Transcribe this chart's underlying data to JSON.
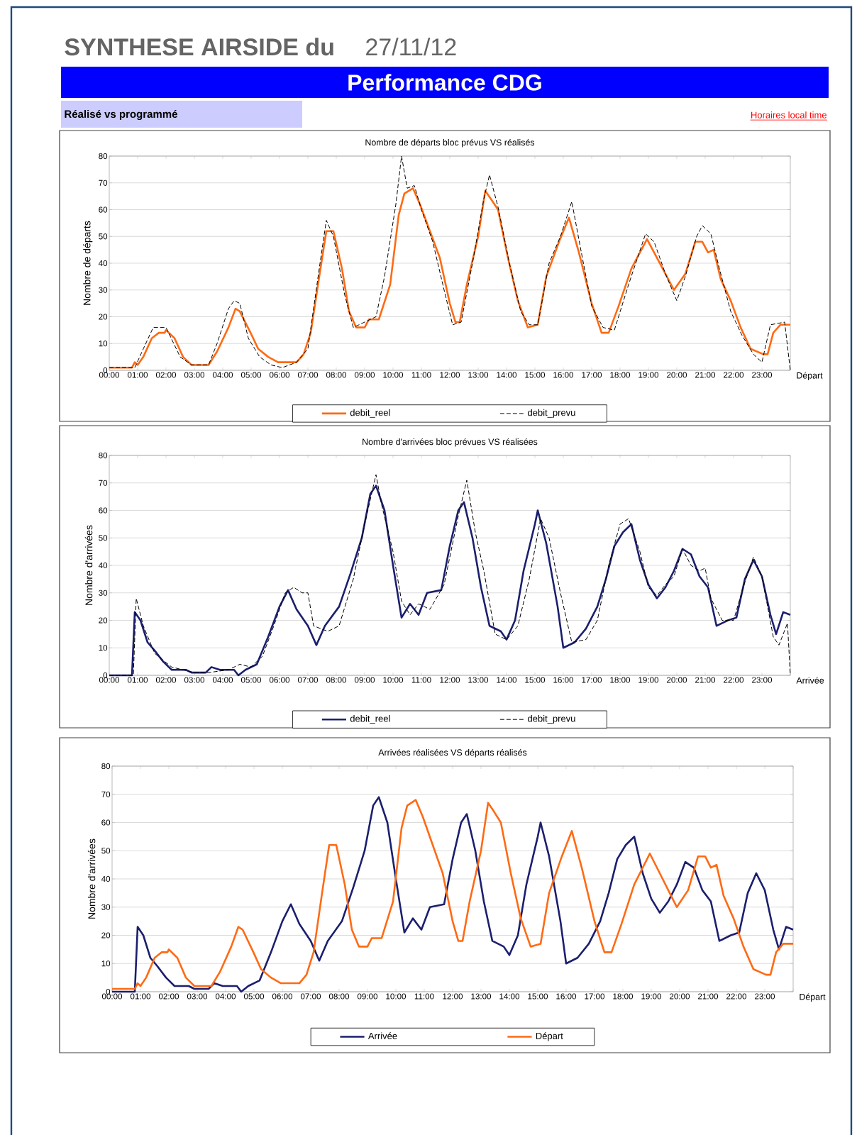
{
  "chart_data": [
    {
      "type": "other",
      "title": "SYNTHESE AIRSIDE du",
      "subtitle": "Performance CDG",
      "annotations": [
        "27/11/12",
        "Réalisé vs programmé",
        "Horaires local time"
      ]
    },
    {
      "type": "line",
      "title": "Nombre de départs bloc prévus VS réalisés",
      "xlabel": "Départ",
      "ylabel": "Nombre de départs",
      "xlim": [
        0,
        24
      ],
      "ylim": [
        0,
        80
      ],
      "yticks": [
        0,
        10,
        20,
        30,
        40,
        50,
        60,
        70,
        80
      ],
      "grid": "y",
      "legend": "bottom",
      "xticks": [
        {
          "value": 0,
          "label": "00:00"
        },
        {
          "value": 1,
          "label": "01:00"
        },
        {
          "value": 2,
          "label": "02:00"
        },
        {
          "value": 3,
          "label": "03:00"
        },
        {
          "value": 4,
          "label": "04:00"
        },
        {
          "value": 5,
          "label": "05:00"
        },
        {
          "value": 6,
          "label": "06:00"
        },
        {
          "value": 7,
          "label": "07:00"
        },
        {
          "value": 8,
          "label": "08:00"
        },
        {
          "value": 9,
          "label": "09:00"
        },
        {
          "value": 10,
          "label": "10:00"
        },
        {
          "value": 11,
          "label": "11:00"
        },
        {
          "value": 12,
          "label": "12:00"
        },
        {
          "value": 13,
          "label": "13:00"
        },
        {
          "value": 14,
          "label": "14:00"
        },
        {
          "value": 15,
          "label": "15:00"
        },
        {
          "value": 16,
          "label": "16:00"
        },
        {
          "value": 17,
          "label": "17:00"
        },
        {
          "value": 18,
          "label": "18:00"
        },
        {
          "value": 19,
          "label": "19:00"
        },
        {
          "value": 20,
          "label": "20:00"
        },
        {
          "value": 21,
          "label": "21:00"
        },
        {
          "value": 22,
          "label": "22:00"
        },
        {
          "value": 23,
          "label": "23:00"
        },
        {
          "value": 24,
          "label": null
        }
      ],
      "series": [
        {
          "name": "debit_reel",
          "color": "#ff6a13",
          "line_style": "solid",
          "x": [
            0,
            0.5,
            0.8,
            0.9,
            1.0,
            1.2,
            1.5,
            1.75,
            1.95,
            2.0,
            2.3,
            2.6,
            2.9,
            3.5,
            3.8,
            4.2,
            4.45,
            4.6,
            4.98,
            5.25,
            5.6,
            5.95,
            6.6,
            6.85,
            7.1,
            7.4,
            7.65,
            7.9,
            8.2,
            8.45,
            8.7,
            9.0,
            9.15,
            9.5,
            9.9,
            10.2,
            10.4,
            10.7,
            10.95,
            11.3,
            11.65,
            12.0,
            12.2,
            12.35,
            12.6,
            13.0,
            13.25,
            13.45,
            13.7,
            14.05,
            14.4,
            14.75,
            15.1,
            15.4,
            15.85,
            16.2,
            16.55,
            17.0,
            17.35,
            17.6,
            17.95,
            18.4,
            18.95,
            19.3,
            19.65,
            19.9,
            20.3,
            20.65,
            20.9,
            21.1,
            21.3,
            21.55,
            21.9,
            22.25,
            22.6,
            23.05,
            23.2,
            23.4,
            23.65,
            23.85,
            24
          ],
          "values": [
            1,
            1,
            1,
            3,
            2,
            5,
            12,
            14,
            14,
            15,
            12,
            5,
            2,
            2,
            7,
            16,
            23,
            22,
            14,
            8,
            5,
            3,
            3,
            6,
            14,
            35,
            52,
            52,
            38,
            22,
            16,
            16,
            19,
            19,
            32,
            58,
            66,
            68,
            62,
            52,
            42,
            25,
            18,
            18,
            32,
            50,
            67,
            64,
            60,
            42,
            26,
            16,
            17,
            35,
            48,
            57,
            44,
            25,
            14,
            14,
            24,
            38,
            49,
            42,
            35,
            30,
            36,
            48,
            48,
            44,
            45,
            34,
            26,
            16,
            8,
            6,
            6,
            14,
            17,
            17,
            17
          ]
        },
        {
          "name": "debit_prevu",
          "color": "#000000",
          "line_style": "dashed",
          "x": [
            0,
            0.9,
            1.2,
            1.55,
            2.0,
            2.5,
            2.9,
            3.5,
            3.8,
            4.2,
            4.4,
            4.6,
            4.9,
            5.3,
            5.7,
            6.1,
            6.6,
            7.0,
            7.4,
            7.65,
            7.9,
            8.3,
            8.6,
            9.0,
            9.4,
            9.7,
            10.1,
            10.3,
            10.5,
            10.75,
            11.0,
            11.4,
            11.8,
            12.1,
            12.4,
            12.8,
            13.2,
            13.4,
            13.7,
            14.1,
            14.5,
            14.8,
            15.1,
            15.5,
            15.9,
            16.3,
            16.6,
            17.0,
            17.4,
            17.8,
            18.3,
            18.9,
            19.2,
            19.6,
            20.0,
            20.3,
            20.7,
            20.9,
            21.2,
            21.5,
            21.9,
            22.3,
            22.7,
            23.0,
            23.3,
            23.8,
            24
          ],
          "values": [
            1,
            1,
            8,
            16,
            16,
            5,
            2,
            2,
            10,
            23,
            26,
            25,
            12,
            5,
            2,
            1,
            3,
            8,
            38,
            56,
            50,
            28,
            16,
            18,
            20,
            35,
            62,
            80,
            68,
            69,
            60,
            48,
            30,
            17,
            18,
            40,
            64,
            73,
            61,
            40,
            22,
            17,
            17,
            40,
            50,
            63,
            46,
            24,
            16,
            15,
            32,
            51,
            48,
            36,
            26,
            35,
            50,
            54,
            51,
            38,
            22,
            13,
            6,
            3,
            17,
            18,
            0
          ]
        }
      ]
    },
    {
      "type": "line",
      "title": "Nombre d'arrivées bloc prévues VS réalisées",
      "xlabel": "Arrivée",
      "ylabel": "Nombre d'arrivées",
      "xlim": [
        0,
        24
      ],
      "ylim": [
        0,
        80
      ],
      "yticks": [
        0,
        10,
        20,
        30,
        40,
        50,
        60,
        70,
        80
      ],
      "grid": "y",
      "legend": "bottom",
      "xticks": [
        {
          "value": 0,
          "label": "00:00"
        },
        {
          "value": 1,
          "label": "01:00"
        },
        {
          "value": 2,
          "label": "02:00"
        },
        {
          "value": 3,
          "label": "03:00"
        },
        {
          "value": 4,
          "label": "04:00"
        },
        {
          "value": 5,
          "label": "05:00"
        },
        {
          "value": 6,
          "label": "06:00"
        },
        {
          "value": 7,
          "label": "07:00"
        },
        {
          "value": 8,
          "label": "08:00"
        },
        {
          "value": 9,
          "label": "09:00"
        },
        {
          "value": 10,
          "label": "10:00"
        },
        {
          "value": 11,
          "label": "11:00"
        },
        {
          "value": 12,
          "label": "12:00"
        },
        {
          "value": 13,
          "label": "13:00"
        },
        {
          "value": 14,
          "label": "14:00"
        },
        {
          "value": 15,
          "label": "15:00"
        },
        {
          "value": 16,
          "label": "16:00"
        },
        {
          "value": 17,
          "label": "17:00"
        },
        {
          "value": 18,
          "label": "18:00"
        },
        {
          "value": 19,
          "label": "19:00"
        },
        {
          "value": 20,
          "label": "20:00"
        },
        {
          "value": 21,
          "label": "21:00"
        },
        {
          "value": 22,
          "label": "22:00"
        },
        {
          "value": 23,
          "label": "23:00"
        },
        {
          "value": 24,
          "label": null
        }
      ],
      "series": [
        {
          "name": "debit_reel",
          "color": "#1b1f6e",
          "line_style": "solid",
          "x": [
            0,
            0.8,
            0.9,
            1.1,
            1.35,
            1.6,
            1.9,
            2.2,
            2.7,
            2.9,
            3.4,
            3.6,
            3.9,
            4.4,
            4.55,
            4.8,
            5.2,
            5.6,
            6.0,
            6.3,
            6.6,
            7.0,
            7.3,
            7.6,
            8.1,
            8.5,
            8.9,
            9.2,
            9.4,
            9.7,
            10.0,
            10.3,
            10.6,
            10.9,
            11.2,
            11.7,
            12.0,
            12.3,
            12.5,
            12.8,
            13.1,
            13.4,
            13.8,
            14.0,
            14.3,
            14.6,
            15.0,
            15.1,
            15.4,
            15.8,
            16.0,
            16.4,
            16.8,
            17.2,
            17.5,
            17.8,
            18.1,
            18.4,
            18.7,
            19.0,
            19.3,
            19.6,
            19.9,
            20.2,
            20.5,
            20.8,
            21.1,
            21.4,
            21.8,
            22.1,
            22.4,
            22.7,
            23.0,
            23.3,
            23.5,
            23.75,
            24
          ],
          "values": [
            0,
            0,
            23,
            20,
            12,
            9,
            5,
            2,
            2,
            1,
            1,
            3,
            2,
            2,
            0,
            2,
            4,
            14,
            25,
            31,
            24,
            18,
            11,
            18,
            25,
            37,
            50,
            66,
            69,
            60,
            40,
            21,
            26,
            22,
            30,
            31,
            47,
            60,
            63,
            50,
            32,
            18,
            16,
            13,
            20,
            38,
            55,
            60,
            48,
            25,
            10,
            12,
            17,
            25,
            35,
            47,
            52,
            55,
            42,
            33,
            28,
            32,
            38,
            46,
            44,
            36,
            32,
            18,
            20,
            21,
            35,
            42,
            36,
            22,
            15,
            23,
            22
          ]
        },
        {
          "name": "debit_prevu",
          "color": "#000000",
          "line_style": "dashed",
          "x": [
            0,
            0.85,
            0.95,
            1.2,
            1.6,
            2.2,
            3.0,
            3.5,
            4.2,
            4.6,
            5.0,
            5.4,
            5.8,
            6.2,
            6.5,
            6.8,
            7.0,
            7.2,
            7.7,
            8.1,
            8.6,
            9.0,
            9.4,
            9.6,
            10.0,
            10.3,
            10.6,
            10.9,
            11.3,
            11.8,
            12.3,
            12.6,
            12.9,
            13.2,
            13.6,
            14.0,
            14.4,
            14.8,
            15.2,
            15.5,
            15.9,
            16.3,
            16.8,
            17.2,
            17.6,
            18.0,
            18.3,
            18.7,
            19.0,
            19.3,
            19.6,
            19.9,
            20.2,
            20.5,
            20.8,
            21.0,
            21.2,
            21.6,
            22.0,
            22.4,
            22.7,
            23.0,
            23.4,
            23.6,
            23.9,
            24
          ],
          "values": [
            0,
            0,
            28,
            18,
            8,
            3,
            1,
            1,
            2,
            4,
            3,
            7,
            18,
            30,
            32,
            30,
            30,
            18,
            16,
            18,
            35,
            55,
            73,
            62,
            45,
            27,
            22,
            26,
            24,
            33,
            58,
            71,
            52,
            38,
            15,
            13,
            18,
            35,
            57,
            50,
            30,
            12,
            13,
            20,
            40,
            55,
            57,
            45,
            32,
            29,
            33,
            36,
            46,
            40,
            38,
            39,
            28,
            20,
            20,
            34,
            43,
            36,
            14,
            11,
            19,
            0
          ]
        }
      ]
    },
    {
      "type": "line",
      "title": "Arrivées réalisées VS départs réalisés",
      "xlabel": "Départ",
      "ylabel": "Nombre d'arrivées",
      "xlim": [
        0,
        24
      ],
      "ylim": [
        0,
        80
      ],
      "yticks": [
        0,
        10,
        20,
        30,
        40,
        50,
        60,
        70,
        80
      ],
      "grid": "y",
      "legend": "bottom",
      "xticks": [
        {
          "value": 0,
          "label": "00:00"
        },
        {
          "value": 1,
          "label": "01:00"
        },
        {
          "value": 2,
          "label": "02:00"
        },
        {
          "value": 3,
          "label": "03:00"
        },
        {
          "value": 4,
          "label": "04:00"
        },
        {
          "value": 5,
          "label": "05:00"
        },
        {
          "value": 6,
          "label": "06:00"
        },
        {
          "value": 7,
          "label": "07:00"
        },
        {
          "value": 8,
          "label": "08:00"
        },
        {
          "value": 9,
          "label": "09:00"
        },
        {
          "value": 10,
          "label": "10:00"
        },
        {
          "value": 11,
          "label": "11:00"
        },
        {
          "value": 12,
          "label": "12:00"
        },
        {
          "value": 13,
          "label": "13:00"
        },
        {
          "value": 14,
          "label": "14:00"
        },
        {
          "value": 15,
          "label": "15:00"
        },
        {
          "value": 16,
          "label": "16:00"
        },
        {
          "value": 17,
          "label": "17:00"
        },
        {
          "value": 18,
          "label": "18:00"
        },
        {
          "value": 19,
          "label": "19:00"
        },
        {
          "value": 20,
          "label": "20:00"
        },
        {
          "value": 21,
          "label": "21:00"
        },
        {
          "value": 22,
          "label": "22:00"
        },
        {
          "value": 23,
          "label": "23:00"
        },
        {
          "value": 24,
          "label": null
        }
      ],
      "series": [
        {
          "name": "Arrivée",
          "color": "#1b1f6e",
          "line_style": "solid",
          "x": [
            0,
            0.8,
            0.9,
            1.1,
            1.35,
            1.6,
            1.9,
            2.2,
            2.7,
            2.9,
            3.4,
            3.6,
            3.9,
            4.4,
            4.55,
            4.8,
            5.2,
            5.6,
            6.0,
            6.3,
            6.6,
            7.0,
            7.3,
            7.6,
            8.1,
            8.5,
            8.9,
            9.2,
            9.4,
            9.7,
            10.0,
            10.3,
            10.6,
            10.9,
            11.2,
            11.7,
            12.0,
            12.3,
            12.5,
            12.8,
            13.1,
            13.4,
            13.8,
            14.0,
            14.3,
            14.6,
            15.0,
            15.1,
            15.4,
            15.8,
            16.0,
            16.4,
            16.8,
            17.2,
            17.5,
            17.8,
            18.1,
            18.4,
            18.7,
            19.0,
            19.3,
            19.6,
            19.9,
            20.2,
            20.5,
            20.8,
            21.1,
            21.4,
            21.8,
            22.1,
            22.4,
            22.7,
            23.0,
            23.3,
            23.5,
            23.75,
            24
          ],
          "values": [
            0,
            0,
            23,
            20,
            12,
            9,
            5,
            2,
            2,
            1,
            1,
            3,
            2,
            2,
            0,
            2,
            4,
            14,
            25,
            31,
            24,
            18,
            11,
            18,
            25,
            37,
            50,
            66,
            69,
            60,
            40,
            21,
            26,
            22,
            30,
            31,
            47,
            60,
            63,
            50,
            32,
            18,
            16,
            13,
            20,
            38,
            55,
            60,
            48,
            25,
            10,
            12,
            17,
            25,
            35,
            47,
            52,
            55,
            42,
            33,
            28,
            32,
            38,
            46,
            44,
            36,
            32,
            18,
            20,
            21,
            35,
            42,
            36,
            22,
            15,
            23,
            22
          ]
        },
        {
          "name": "Départ",
          "color": "#ff6a13",
          "line_style": "solid",
          "x": [
            0,
            0.5,
            0.8,
            0.9,
            1.0,
            1.2,
            1.5,
            1.75,
            1.95,
            2.0,
            2.3,
            2.6,
            2.9,
            3.5,
            3.8,
            4.2,
            4.45,
            4.6,
            4.98,
            5.25,
            5.6,
            5.95,
            6.6,
            6.85,
            7.1,
            7.4,
            7.65,
            7.9,
            8.2,
            8.45,
            8.7,
            9.0,
            9.15,
            9.5,
            9.9,
            10.2,
            10.4,
            10.7,
            10.95,
            11.3,
            11.65,
            12.0,
            12.2,
            12.35,
            12.6,
            13.0,
            13.25,
            13.45,
            13.7,
            14.05,
            14.4,
            14.75,
            15.1,
            15.4,
            15.85,
            16.2,
            16.55,
            17.0,
            17.35,
            17.6,
            17.95,
            18.4,
            18.95,
            19.3,
            19.65,
            19.9,
            20.3,
            20.65,
            20.9,
            21.1,
            21.3,
            21.55,
            21.9,
            22.25,
            22.6,
            23.05,
            23.2,
            23.4,
            23.65,
            23.85,
            24
          ],
          "values": [
            1,
            1,
            1,
            3,
            2,
            5,
            12,
            14,
            14,
            15,
            12,
            5,
            2,
            2,
            7,
            16,
            23,
            22,
            14,
            8,
            5,
            3,
            3,
            6,
            14,
            35,
            52,
            52,
            38,
            22,
            16,
            16,
            19,
            19,
            32,
            58,
            66,
            68,
            62,
            52,
            42,
            25,
            18,
            18,
            32,
            50,
            67,
            64,
            60,
            42,
            26,
            16,
            17,
            35,
            48,
            57,
            44,
            25,
            14,
            14,
            24,
            38,
            49,
            42,
            35,
            30,
            36,
            48,
            48,
            44,
            45,
            34,
            26,
            16,
            8,
            6,
            6,
            14,
            17,
            17,
            17
          ]
        }
      ]
    }
  ]
}
